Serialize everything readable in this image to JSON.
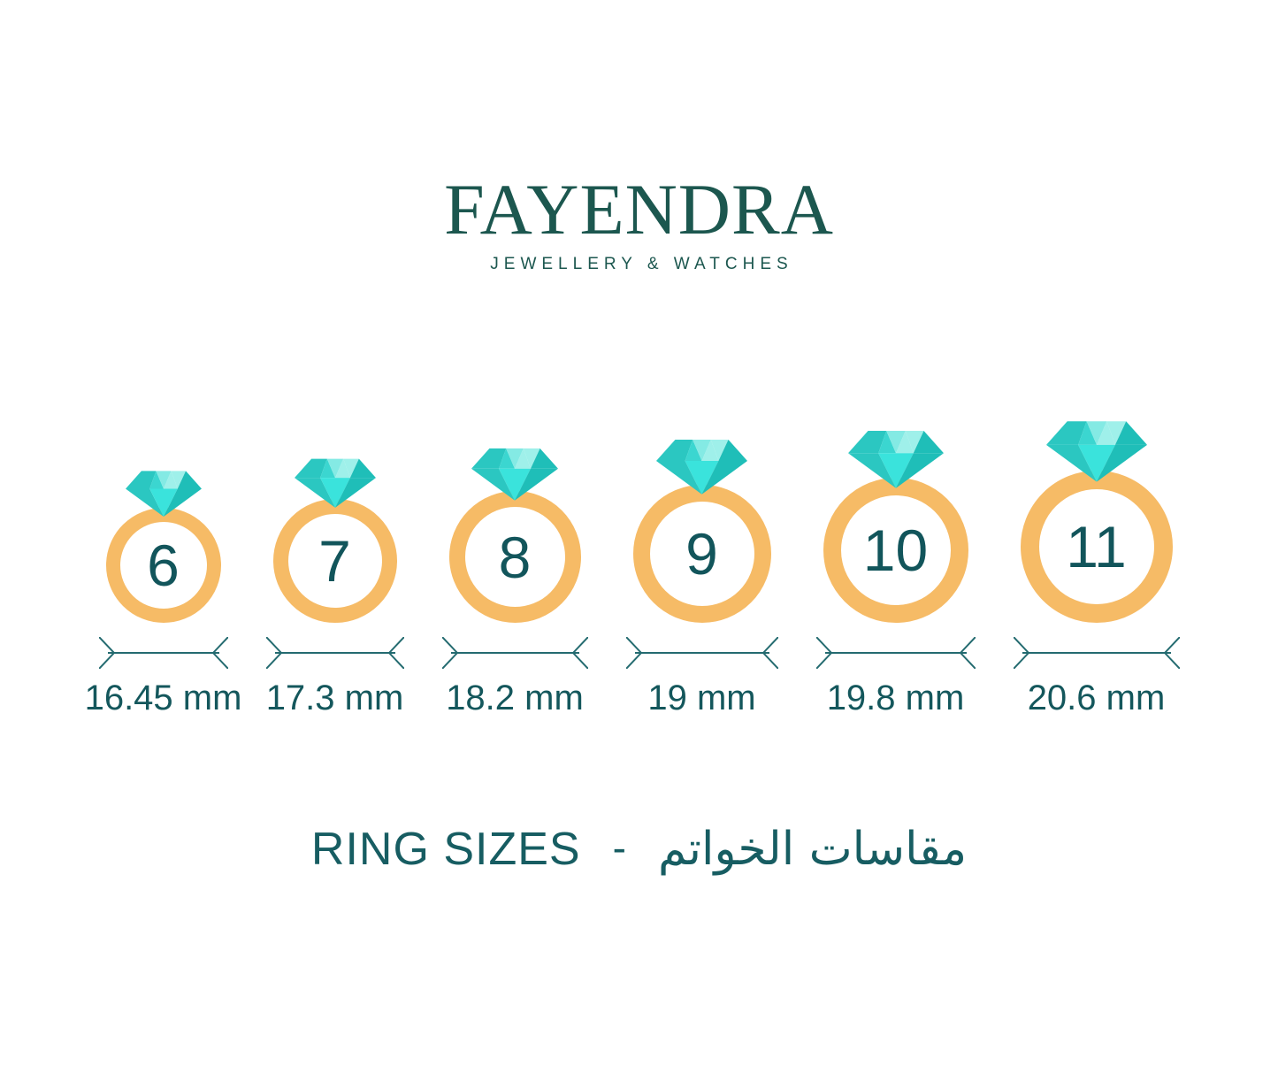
{
  "brand": {
    "name": "FAYENDRA",
    "tagline": "JEWELLERY & WATCHES"
  },
  "title": {
    "en": "RING SIZES",
    "separator": "-",
    "ar": "مقاسات الخواتم"
  },
  "rings": [
    {
      "size": "6",
      "diameter": "16.45 mm"
    },
    {
      "size": "7",
      "diameter": "17.3 mm"
    },
    {
      "size": "8",
      "diameter": "18.2 mm"
    },
    {
      "size": "9",
      "diameter": "19 mm"
    },
    {
      "size": "10",
      "diameter": "19.8 mm"
    },
    {
      "size": "11",
      "diameter": "20.6 mm"
    }
  ],
  "colors": {
    "band_gold": "#F6BB66",
    "text_teal": "#14575C",
    "logo_green": "#1C574F",
    "arrow_teal": "#246B70",
    "diamond_bright": "#3AE3DC",
    "diamond_medium": "#2BC7C1",
    "diamond_dark": "#1FBEB8",
    "diamond_light": "#9FF0EA",
    "diamond_lighter": "#84EAE4",
    "diamond_bridge": "#3BD6D0"
  },
  "chart_data": {
    "type": "table",
    "title": "RING SIZES - مقاسات الخواتم",
    "columns": [
      "ring_size",
      "inner_diameter"
    ],
    "rows": [
      [
        "6",
        "16.45 mm"
      ],
      [
        "7",
        "17.3 mm"
      ],
      [
        "8",
        "18.2 mm"
      ],
      [
        "9",
        "19 mm"
      ],
      [
        "10",
        "19.8 mm"
      ],
      [
        "11",
        "20.6 mm"
      ]
    ]
  }
}
